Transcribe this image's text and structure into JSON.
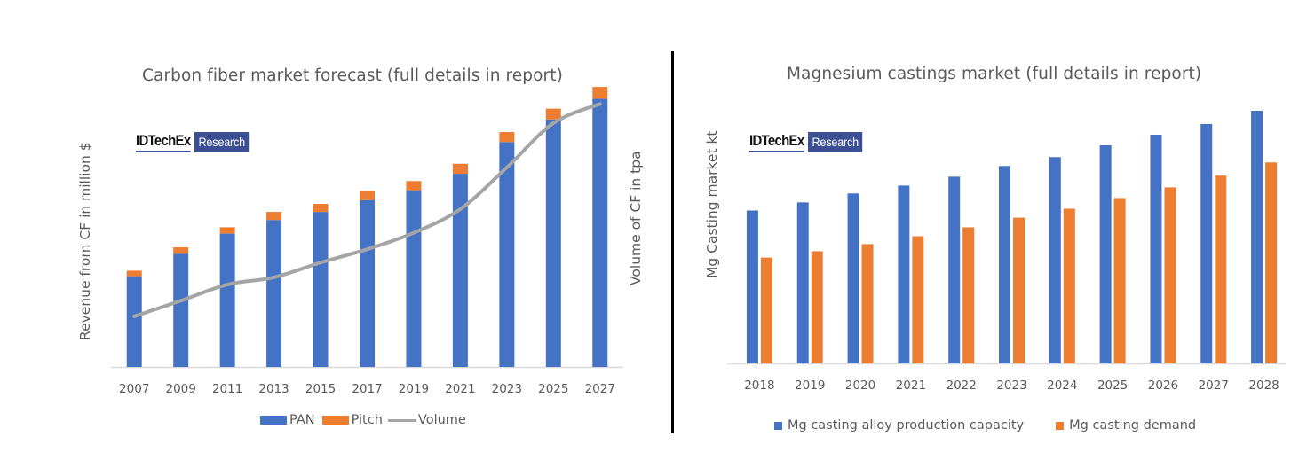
{
  "chart_data": [
    {
      "type": "bar",
      "stacked": true,
      "title": "Carbon fiber market forecast (full details in report)",
      "ylabel": "Revenue from CF in million $",
      "y2label": "Volume of CF  in tpa",
      "xlabel": "",
      "logo": {
        "brand": "IDTechEx",
        "badge": "Research"
      },
      "categories": [
        "2007",
        "2009",
        "2011",
        "2013",
        "2015",
        "2017",
        "2019",
        "2021",
        "2023",
        "2025",
        "2027"
      ],
      "ylim": [
        0,
        100
      ],
      "y_units_note": "relative (no axis ticks shown)",
      "series": [
        {
          "name": "PAN",
          "kind": "bar",
          "color": "#4472c4",
          "values": [
            32.6,
            40.7,
            47.9,
            52.8,
            55.7,
            59.9,
            63.5,
            69.4,
            80.8,
            88.9,
            96.4
          ]
        },
        {
          "name": "Pitch",
          "kind": "bar",
          "color": "#ed7d31",
          "values": [
            2.0,
            2.3,
            2.3,
            2.9,
            2.9,
            3.3,
            3.3,
            3.6,
            3.6,
            3.9,
            4.2
          ]
        },
        {
          "name": "Volume",
          "kind": "line",
          "color": "#a5a5a5",
          "axis": "secondary",
          "values": [
            18.2,
            23.8,
            29.6,
            32.2,
            37.5,
            42.3,
            48.2,
            56.7,
            71.7,
            87.6,
            94.5
          ]
        }
      ],
      "legend": [
        "PAN",
        "Pitch",
        "Volume"
      ],
      "legend_position": "bottom",
      "grid": false
    },
    {
      "type": "bar",
      "stacked": false,
      "title": "Magnesium castings market (full details in report)",
      "ylabel": "Mg Casting market kt",
      "xlabel": "",
      "logo": {
        "brand": "IDTechEx",
        "badge": "Research"
      },
      "categories": [
        "2018",
        "2019",
        "2020",
        "2021",
        "2022",
        "2023",
        "2024",
        "2025",
        "2026",
        "2027",
        "2028"
      ],
      "ylim": [
        0,
        100
      ],
      "y_units_note": "relative (no axis ticks shown)",
      "series": [
        {
          "name": "Mg casting alloy production capacity",
          "color": "#4472c4",
          "values": [
            60.1,
            63.3,
            66.8,
            69.9,
            73.4,
            77.6,
            81.1,
            85.7,
            89.9,
            94.1,
            99.3
          ]
        },
        {
          "name": "Mg casting demand",
          "color": "#ed7d31",
          "values": [
            41.6,
            44.1,
            46.9,
            50.0,
            53.5,
            57.3,
            60.8,
            65.0,
            69.2,
            73.8,
            79.0
          ]
        }
      ],
      "legend": [
        "Mg casting alloy production capacity",
        "Mg casting demand"
      ],
      "legend_position": "bottom",
      "grid": false
    }
  ]
}
